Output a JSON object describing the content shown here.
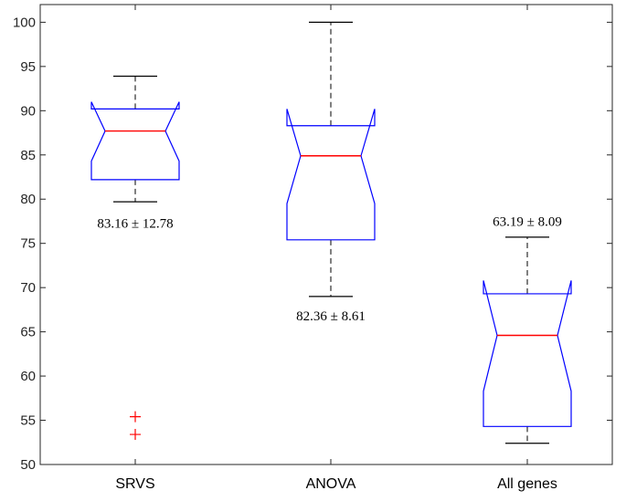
{
  "chart_data": {
    "type": "boxplot",
    "notched": true,
    "categories": [
      "SRVS",
      "ANOVA",
      "All genes"
    ],
    "ylim": [
      50,
      102
    ],
    "yticks": [
      50,
      55,
      60,
      65,
      70,
      75,
      80,
      85,
      90,
      95,
      100
    ],
    "grid": false,
    "colors": {
      "box": "#0000ff",
      "median": "#ff0000",
      "whisker": "#000000",
      "outlier": "#ff0000"
    },
    "boxes": [
      {
        "category": "SRVS",
        "whisker_low": 79.7,
        "q1": 82.2,
        "median": 87.7,
        "q3": 90.2,
        "whisker_high": 93.9,
        "notch_low": 84.3,
        "notch_high": 91.0,
        "outliers": [
          55.4,
          53.4
        ],
        "annotation": "83.16 ± 12.78",
        "annotation_y": 77.3
      },
      {
        "category": "ANOVA",
        "whisker_low": 69.0,
        "q1": 75.4,
        "median": 84.9,
        "q3": 88.3,
        "whisker_high": 100.0,
        "notch_low": 79.5,
        "notch_high": 90.2,
        "outliers": [],
        "annotation": "82.36 ± 8.61",
        "annotation_y": 66.8
      },
      {
        "category": "All genes",
        "whisker_low": 52.4,
        "q1": 54.3,
        "median": 64.6,
        "q3": 69.3,
        "whisker_high": 75.7,
        "notch_low": 58.3,
        "notch_high": 70.8,
        "outliers": [],
        "annotation": "63.19 ± 8.09",
        "annotation_y": 77.5
      }
    ]
  }
}
